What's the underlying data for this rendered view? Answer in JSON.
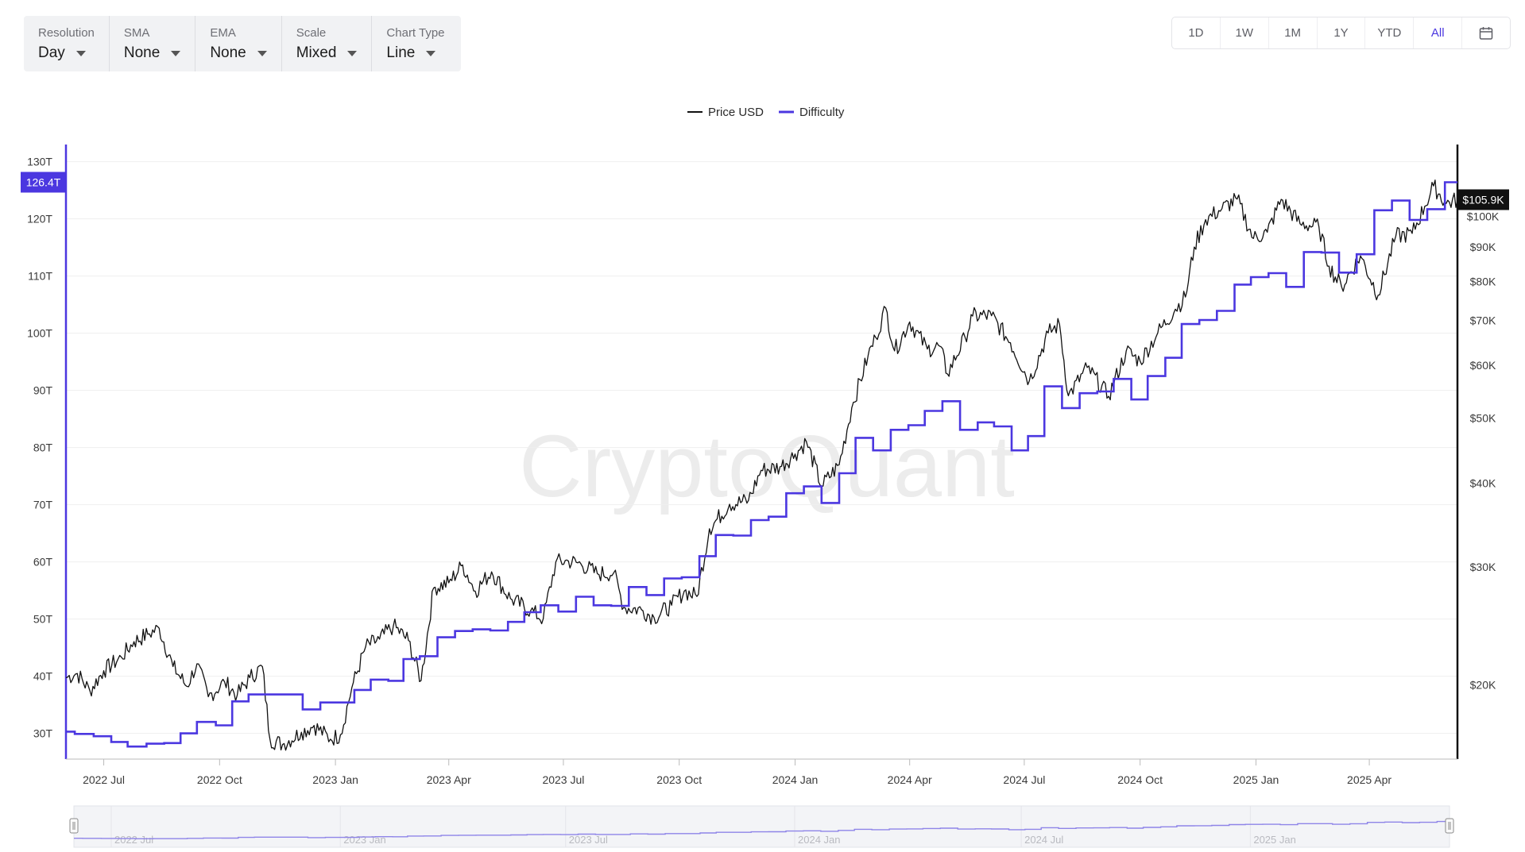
{
  "toolbar": {
    "controls": [
      {
        "label": "Resolution",
        "value": "Day"
      },
      {
        "label": "SMA",
        "value": "None"
      },
      {
        "label": "EMA",
        "value": "None"
      },
      {
        "label": "Scale",
        "value": "Mixed"
      },
      {
        "label": "Chart Type",
        "value": "Line"
      }
    ]
  },
  "range_buttons": [
    "1D",
    "1W",
    "1M",
    "1Y",
    "YTD",
    "All"
  ],
  "range_active": "All",
  "calendar_icon": "calendar-icon",
  "watermark": "CryptoQuant",
  "colors": {
    "price": "#111111",
    "difficulty": "#4b37e0",
    "axis": "#2f2f2f",
    "badge_difficulty": "#4b37e0",
    "badge_price": "#111111"
  },
  "chart_data": {
    "type": "line",
    "legend": {
      "position": "top-center",
      "entries": [
        "Price USD",
        "Difficulty"
      ]
    },
    "x_ticks": [
      "2022 Jul",
      "2022 Oct",
      "2023 Jan",
      "2023 Apr",
      "2023 Jul",
      "2023 Oct",
      "2024 Jan",
      "2024 Apr",
      "2024 Jul",
      "2024 Oct",
      "2025 Jan",
      "2025 Apr"
    ],
    "xlim": [
      "2022-06-01",
      "2025-06-10"
    ],
    "y_left": {
      "ticks": [
        "30T",
        "40T",
        "50T",
        "60T",
        "70T",
        "80T",
        "90T",
        "100T",
        "110T",
        "120T",
        "130T"
      ],
      "range": [
        25.5,
        133
      ],
      "scale": "linear",
      "current_label": "126.4T"
    },
    "y_right": {
      "ticks": [
        "$20K",
        "$30K",
        "$40K",
        "$50K",
        "$60K",
        "$70K",
        "$80K",
        "$90K",
        "$100K"
      ],
      "tick_values": [
        20000,
        30000,
        40000,
        50000,
        60000,
        70000,
        80000,
        90000,
        100000
      ],
      "range": [
        15500,
        128000
      ],
      "scale": "log",
      "current_label": "$105.9K"
    },
    "series": [
      {
        "name": "Price USD",
        "axis": "right",
        "points": [
          [
            "2022-06-01",
            20500
          ],
          [
            "2022-06-10",
            20800
          ],
          [
            "2022-06-20",
            19600
          ],
          [
            "2022-07-01",
            21000
          ],
          [
            "2022-07-15",
            22000
          ],
          [
            "2022-07-25",
            23200
          ],
          [
            "2022-08-05",
            23800
          ],
          [
            "2022-08-14",
            24300
          ],
          [
            "2022-08-25",
            21300
          ],
          [
            "2022-09-05",
            19900
          ],
          [
            "2022-09-13",
            21500
          ],
          [
            "2022-09-22",
            19200
          ],
          [
            "2022-10-05",
            20200
          ],
          [
            "2022-10-15",
            19300
          ],
          [
            "2022-10-25",
            20500
          ],
          [
            "2022-11-04",
            21300
          ],
          [
            "2022-11-10",
            16600
          ],
          [
            "2022-11-20",
            16300
          ],
          [
            "2022-12-05",
            17000
          ],
          [
            "2022-12-15",
            17400
          ],
          [
            "2022-12-28",
            16600
          ],
          [
            "2023-01-05",
            16850
          ],
          [
            "2023-01-14",
            19800
          ],
          [
            "2023-01-25",
            22800
          ],
          [
            "2023-02-05",
            23400
          ],
          [
            "2023-02-16",
            24500
          ],
          [
            "2023-02-28",
            23300
          ],
          [
            "2023-03-10",
            20300
          ],
          [
            "2023-03-20",
            27900
          ],
          [
            "2023-04-01",
            28400
          ],
          [
            "2023-04-12",
            30200
          ],
          [
            "2023-04-22",
            27600
          ],
          [
            "2023-05-05",
            29500
          ],
          [
            "2023-05-20",
            26900
          ],
          [
            "2023-06-05",
            25800
          ],
          [
            "2023-06-15",
            25100
          ],
          [
            "2023-06-25",
            30500
          ],
          [
            "2023-07-05",
            30600
          ],
          [
            "2023-07-15",
            30300
          ],
          [
            "2023-07-28",
            29300
          ],
          [
            "2023-08-10",
            29400
          ],
          [
            "2023-08-18",
            26100
          ],
          [
            "2023-09-01",
            25900
          ],
          [
            "2023-09-11",
            25200
          ],
          [
            "2023-09-25",
            26300
          ],
          [
            "2023-10-05",
            27600
          ],
          [
            "2023-10-15",
            27100
          ],
          [
            "2023-10-25",
            34200
          ],
          [
            "2023-11-10",
            37200
          ],
          [
            "2023-11-25",
            37700
          ],
          [
            "2023-12-05",
            41800
          ],
          [
            "2023-12-20",
            42300
          ],
          [
            "2024-01-01",
            44200
          ],
          [
            "2024-01-10",
            46100
          ],
          [
            "2024-01-22",
            39600
          ],
          [
            "2024-02-05",
            42600
          ],
          [
            "2024-02-15",
            51800
          ],
          [
            "2024-02-28",
            62000
          ],
          [
            "2024-03-05",
            66000
          ],
          [
            "2024-03-13",
            73000
          ],
          [
            "2024-03-20",
            63000
          ],
          [
            "2024-04-01",
            69600
          ],
          [
            "2024-04-15",
            63400
          ],
          [
            "2024-04-25",
            64000
          ],
          [
            "2024-05-01",
            58200
          ],
          [
            "2024-05-15",
            66000
          ],
          [
            "2024-05-21",
            71000
          ],
          [
            "2024-06-05",
            71100
          ],
          [
            "2024-06-20",
            64800
          ],
          [
            "2024-07-05",
            56800
          ],
          [
            "2024-07-20",
            67000
          ],
          [
            "2024-07-29",
            69000
          ],
          [
            "2024-08-05",
            54000
          ],
          [
            "2024-08-20",
            59500
          ],
          [
            "2024-09-06",
            53900
          ],
          [
            "2024-09-20",
            63000
          ],
          [
            "2024-10-01",
            60800
          ],
          [
            "2024-10-15",
            67000
          ],
          [
            "2024-10-29",
            72700
          ],
          [
            "2024-11-06",
            75800
          ],
          [
            "2024-11-13",
            90000
          ],
          [
            "2024-11-22",
            98900
          ],
          [
            "2024-12-05",
            102700
          ],
          [
            "2024-12-17",
            106100
          ],
          [
            "2024-12-30",
            92700
          ],
          [
            "2025-01-10",
            94700
          ],
          [
            "2025-01-21",
            106000
          ],
          [
            "2025-02-05",
            97500
          ],
          [
            "2025-02-20",
            96500
          ],
          [
            "2025-02-28",
            84300
          ],
          [
            "2025-03-10",
            78500
          ],
          [
            "2025-03-25",
            87300
          ],
          [
            "2025-04-08",
            76300
          ],
          [
            "2025-04-22",
            93400
          ],
          [
            "2025-05-05",
            94300
          ],
          [
            "2025-05-15",
            103500
          ],
          [
            "2025-05-22",
            111000
          ],
          [
            "2025-06-01",
            104500
          ],
          [
            "2025-06-10",
            105900
          ]
        ]
      },
      {
        "name": "Difficulty",
        "axis": "left",
        "points": [
          [
            "2022-06-01",
            30.3
          ],
          [
            "2022-06-08",
            29.9
          ],
          [
            "2022-06-23",
            29.5
          ],
          [
            "2022-07-07",
            28.5
          ],
          [
            "2022-07-20",
            27.7
          ],
          [
            "2022-08-04",
            28.2
          ],
          [
            "2022-08-18",
            28.3
          ],
          [
            "2022-08-31",
            30.0
          ],
          [
            "2022-09-13",
            32.0
          ],
          [
            "2022-09-28",
            31.4
          ],
          [
            "2022-10-11",
            35.6
          ],
          [
            "2022-10-24",
            36.8
          ],
          [
            "2022-11-06",
            36.8
          ],
          [
            "2022-11-20",
            36.8
          ],
          [
            "2022-12-06",
            34.2
          ],
          [
            "2022-12-20",
            35.4
          ],
          [
            "2023-01-03",
            35.4
          ],
          [
            "2023-01-16",
            37.6
          ],
          [
            "2023-01-29",
            39.4
          ],
          [
            "2023-02-12",
            39.2
          ],
          [
            "2023-02-24",
            43.0
          ],
          [
            "2023-03-09",
            43.5
          ],
          [
            "2023-03-23",
            46.8
          ],
          [
            "2023-04-06",
            47.9
          ],
          [
            "2023-04-20",
            48.2
          ],
          [
            "2023-05-04",
            48.0
          ],
          [
            "2023-05-18",
            49.5
          ],
          [
            "2023-05-31",
            51.2
          ],
          [
            "2023-06-13",
            52.4
          ],
          [
            "2023-06-27",
            51.3
          ],
          [
            "2023-07-11",
            53.9
          ],
          [
            "2023-07-25",
            52.4
          ],
          [
            "2023-08-08",
            52.3
          ],
          [
            "2023-08-22",
            55.6
          ],
          [
            "2023-09-05",
            54.2
          ],
          [
            "2023-09-19",
            57.1
          ],
          [
            "2023-10-03",
            57.3
          ],
          [
            "2023-10-17",
            61.0
          ],
          [
            "2023-10-30",
            64.7
          ],
          [
            "2023-11-13",
            64.6
          ],
          [
            "2023-11-27",
            67.3
          ],
          [
            "2023-12-11",
            67.9
          ],
          [
            "2023-12-25",
            72.0
          ],
          [
            "2024-01-08",
            73.2
          ],
          [
            "2024-01-22",
            70.3
          ],
          [
            "2024-02-05",
            75.5
          ],
          [
            "2024-02-18",
            81.7
          ],
          [
            "2024-03-03",
            79.5
          ],
          [
            "2024-03-17",
            83.1
          ],
          [
            "2024-03-31",
            83.9
          ],
          [
            "2024-04-13",
            86.4
          ],
          [
            "2024-04-27",
            88.1
          ],
          [
            "2024-05-11",
            83.1
          ],
          [
            "2024-05-25",
            84.4
          ],
          [
            "2024-06-07",
            83.7
          ],
          [
            "2024-06-21",
            79.5
          ],
          [
            "2024-07-04",
            82.0
          ],
          [
            "2024-07-17",
            90.7
          ],
          [
            "2024-07-31",
            86.9
          ],
          [
            "2024-08-14",
            89.5
          ],
          [
            "2024-08-28",
            89.8
          ],
          [
            "2024-09-10",
            92.0
          ],
          [
            "2024-09-24",
            88.4
          ],
          [
            "2024-10-07",
            92.5
          ],
          [
            "2024-10-21",
            95.7
          ],
          [
            "2024-11-03",
            101.6
          ],
          [
            "2024-11-17",
            102.3
          ],
          [
            "2024-12-01",
            103.9
          ],
          [
            "2024-12-15",
            108.5
          ],
          [
            "2024-12-28",
            109.8
          ],
          [
            "2025-01-11",
            110.5
          ],
          [
            "2025-01-25",
            108.1
          ],
          [
            "2025-02-08",
            114.2
          ],
          [
            "2025-02-22",
            114.1
          ],
          [
            "2025-03-08",
            110.6
          ],
          [
            "2025-03-22",
            113.8
          ],
          [
            "2025-04-05",
            121.5
          ],
          [
            "2025-04-19",
            123.2
          ],
          [
            "2025-05-03",
            119.8
          ],
          [
            "2025-05-17",
            121.7
          ],
          [
            "2025-05-31",
            126.4
          ],
          [
            "2025-06-10",
            126.4
          ]
        ]
      }
    ],
    "navigator_ticks": [
      "2022 Jul",
      "2023 Jan",
      "2023 Jul",
      "2024 Jan",
      "2024 Jul",
      "2025 Jan"
    ]
  }
}
